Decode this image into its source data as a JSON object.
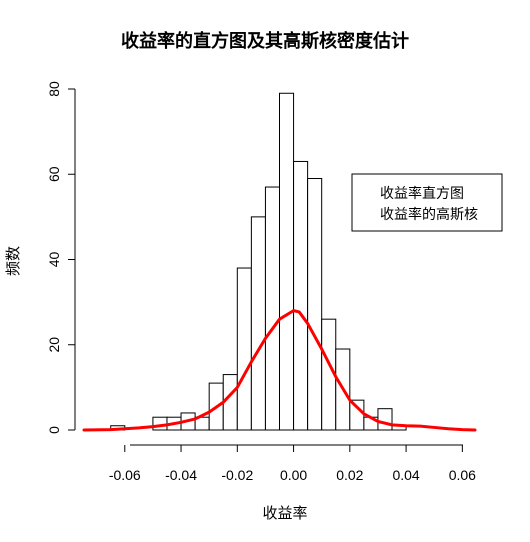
{
  "chart_data": {
    "type": "bar",
    "title": "收益率的直方图及其高斯核密度估计",
    "xlabel": "收益率",
    "ylabel": "频数",
    "xlim": [
      -0.0745,
      0.0645
    ],
    "ylim": [
      0,
      80
    ],
    "x_ticks": [
      "-0.06",
      "-0.04",
      "-0.02",
      "0.00",
      "0.02",
      "0.04",
      "0.06"
    ],
    "x_tick_values": [
      -0.06,
      -0.04,
      -0.02,
      0.0,
      0.02,
      0.04,
      0.06
    ],
    "y_ticks": [
      "0",
      "20",
      "40",
      "60",
      "80"
    ],
    "y_tick_values": [
      0,
      20,
      40,
      60,
      80
    ],
    "bins": [
      {
        "x0": -0.065,
        "x1": -0.06,
        "count": 1
      },
      {
        "x0": -0.06,
        "x1": -0.055,
        "count": 0
      },
      {
        "x0": -0.055,
        "x1": -0.05,
        "count": 0
      },
      {
        "x0": -0.05,
        "x1": -0.045,
        "count": 3
      },
      {
        "x0": -0.045,
        "x1": -0.04,
        "count": 3
      },
      {
        "x0": -0.04,
        "x1": -0.035,
        "count": 4
      },
      {
        "x0": -0.035,
        "x1": -0.03,
        "count": 3
      },
      {
        "x0": -0.03,
        "x1": -0.025,
        "count": 11
      },
      {
        "x0": -0.025,
        "x1": -0.02,
        "count": 13
      },
      {
        "x0": -0.02,
        "x1": -0.015,
        "count": 38
      },
      {
        "x0": -0.015,
        "x1": -0.01,
        "count": 50
      },
      {
        "x0": -0.01,
        "x1": -0.005,
        "count": 57
      },
      {
        "x0": -0.005,
        "x1": 0.0,
        "count": 79
      },
      {
        "x0": 0.0,
        "x1": 0.005,
        "count": 63
      },
      {
        "x0": 0.005,
        "x1": 0.01,
        "count": 59
      },
      {
        "x0": 0.01,
        "x1": 0.015,
        "count": 26
      },
      {
        "x0": 0.015,
        "x1": 0.02,
        "count": 19
      },
      {
        "x0": 0.02,
        "x1": 0.025,
        "count": 7
      },
      {
        "x0": 0.025,
        "x1": 0.03,
        "count": 3
      },
      {
        "x0": 0.03,
        "x1": 0.035,
        "count": 5
      },
      {
        "x0": 0.035,
        "x1": 0.04,
        "count": 1
      }
    ],
    "series": [
      {
        "name": "收益率的高斯核",
        "type": "line",
        "color": "#ff0000",
        "x": [
          -0.0745,
          -0.065,
          -0.06,
          -0.055,
          -0.05,
          -0.045,
          -0.04,
          -0.035,
          -0.03,
          -0.025,
          -0.02,
          -0.015,
          -0.01,
          -0.005,
          0.0,
          0.002,
          0.005,
          0.01,
          0.015,
          0.02,
          0.025,
          0.03,
          0.035,
          0.04,
          0.045,
          0.05,
          0.055,
          0.06,
          0.0645
        ],
        "y": [
          0,
          0.1,
          0.3,
          0.5,
          0.8,
          1.2,
          1.8,
          2.6,
          4.2,
          6.5,
          10,
          16,
          21.5,
          26,
          28,
          27.7,
          25,
          19,
          12.5,
          7,
          3.8,
          2.0,
          1.2,
          1.0,
          0.9,
          0.6,
          0.3,
          0.1,
          0
        ]
      }
    ],
    "legend": {
      "position": "top-right",
      "entries": [
        "收益率直方图",
        "收益率的高斯核"
      ]
    },
    "bar_fill": "#ffffff",
    "bar_stroke": "#000000",
    "grid": false
  }
}
